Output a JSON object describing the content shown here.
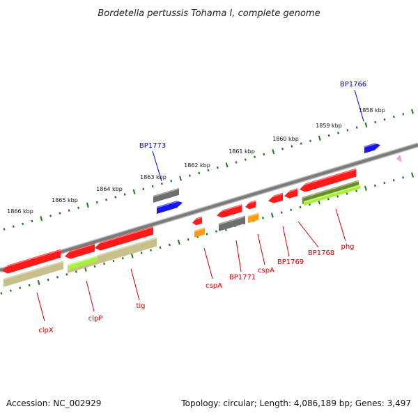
{
  "title": "Bordetella pertussis Tohama I, complete genome",
  "footer": {
    "accession": "Accession: NC_002929",
    "topology": "Topology: circular; Length: 4,086,189 bp; Genes: 3,497"
  },
  "colors": {
    "backbone": "#8a8a8a",
    "tick": "#1a7a1a",
    "red": "#ff1a1a",
    "gray": "#6e6e6e",
    "blue": "#1616ee",
    "khaki": "#c8c08a",
    "olive": "#6b8a2a",
    "lime": "#a8f03a",
    "orange": "#ff9a14",
    "pink": "#ff9ad0",
    "label_red": "#cc0000",
    "label_blue": "#0000cc"
  },
  "scale": {
    "unit": "kbp",
    "ticks": [
      {
        "label": "1858 kbp",
        "kbp": 1858
      },
      {
        "label": "1859 kbp",
        "kbp": 1859
      },
      {
        "label": "1860 kbp",
        "kbp": 1860
      },
      {
        "label": "1861 kbp",
        "kbp": 1861
      },
      {
        "label": "1862 kbp",
        "kbp": 1862
      },
      {
        "label": "1863 kbp",
        "kbp": 1863
      },
      {
        "label": "1864 kbp",
        "kbp": 1864
      },
      {
        "label": "1865 kbp",
        "kbp": 1865
      },
      {
        "label": "1866 kbp",
        "kbp": 1866
      }
    ]
  },
  "gene_labels": [
    {
      "name": "BP1766",
      "color": "label_blue"
    },
    {
      "name": "BP1773",
      "color": "label_blue"
    },
    {
      "name": "phg",
      "color": "label_red"
    },
    {
      "name": "BP1768",
      "color": "label_red"
    },
    {
      "name": "BP1769",
      "color": "label_red"
    },
    {
      "name": "cspA",
      "color": "label_red"
    },
    {
      "name": "BP1771",
      "color": "label_red"
    },
    {
      "name": "cspA",
      "color": "label_red"
    },
    {
      "name": "tig",
      "color": "label_red"
    },
    {
      "name": "clpP",
      "color": "label_red"
    },
    {
      "name": "clpX",
      "color": "label_red"
    }
  ]
}
